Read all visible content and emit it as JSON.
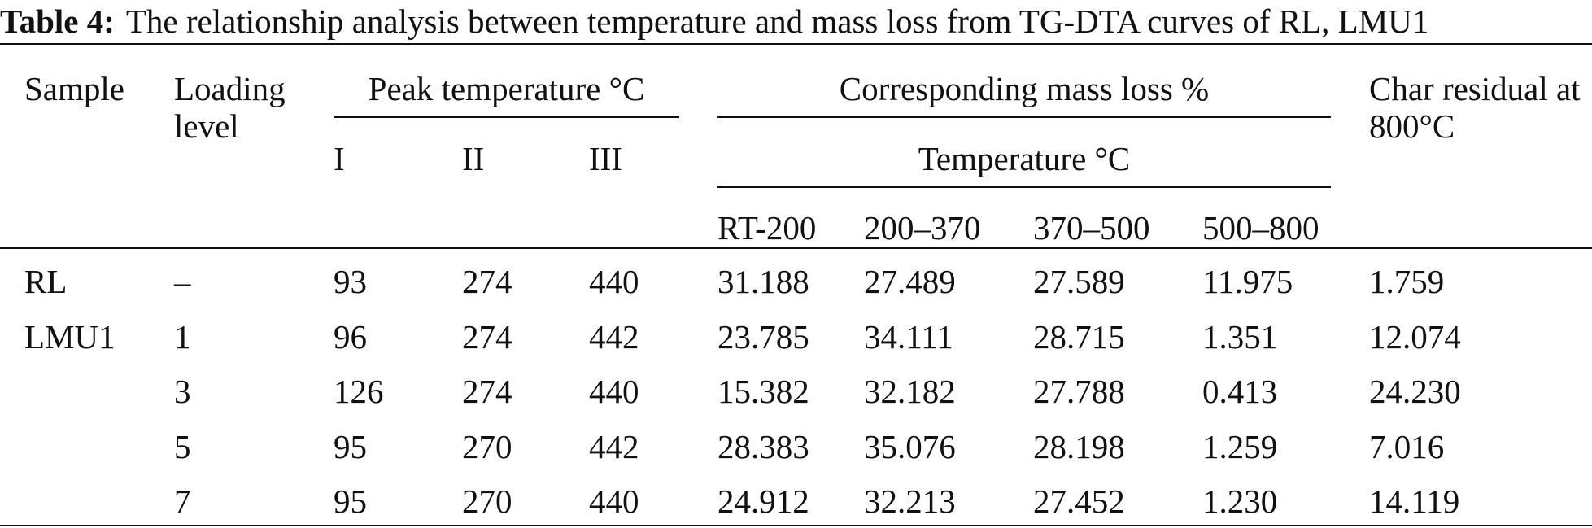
{
  "caption": {
    "label": "Table 4:",
    "text": "The relationship analysis between temperature and mass loss from TG-DTA curves of RL, LMU1"
  },
  "header": {
    "sample": "Sample",
    "loading": "Loading level",
    "peak_group": "Peak temperature °C",
    "peak_cols": [
      "I",
      "II",
      "III"
    ],
    "mass_group": "Corresponding mass loss %",
    "temp_group": "Temperature °C",
    "temp_cols": [
      "RT-200",
      "200–370",
      "370–500",
      "500–800"
    ],
    "char": "Char residual at 800°C"
  },
  "rows": [
    {
      "sample": "RL",
      "loading": "–",
      "peak": [
        "93",
        "274",
        "440"
      ],
      "mass": [
        "31.188",
        "27.489",
        "27.589",
        "11.975"
      ],
      "char": "1.759"
    },
    {
      "sample": "LMU1",
      "loading": "1",
      "peak": [
        "96",
        "274",
        "442"
      ],
      "mass": [
        "23.785",
        "34.111",
        "28.715",
        "1.351"
      ],
      "char": "12.074"
    },
    {
      "sample": "",
      "loading": "3",
      "peak": [
        "126",
        "274",
        "440"
      ],
      "mass": [
        "15.382",
        "32.182",
        "27.788",
        "0.413"
      ],
      "char": "24.230"
    },
    {
      "sample": "",
      "loading": "5",
      "peak": [
        "95",
        "270",
        "442"
      ],
      "mass": [
        "28.383",
        "35.076",
        "28.198",
        "1.259"
      ],
      "char": "7.016"
    },
    {
      "sample": "",
      "loading": "7",
      "peak": [
        "95",
        "270",
        "440"
      ],
      "mass": [
        "24.912",
        "32.213",
        "27.452",
        "1.230"
      ],
      "char": "14.119"
    }
  ]
}
